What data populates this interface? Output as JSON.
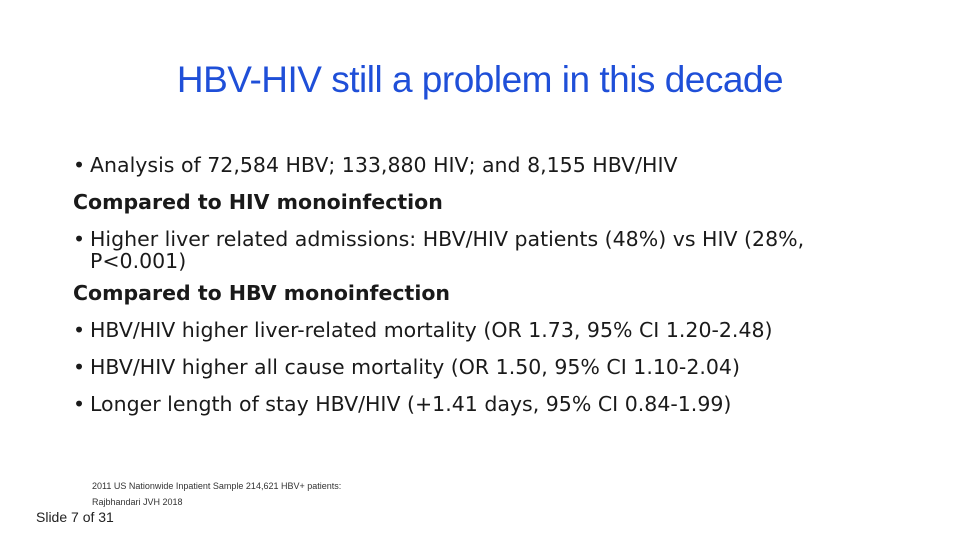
{
  "slide": {
    "title": "HBV-HIV still a problem in this decade",
    "bullet_char": "•",
    "lines": {
      "analysis": "Analysis of 72,584 HBV; 133,880 HIV; and 8,155 HBV/HIV",
      "section_hiv": "Compared to HIV monoinfection",
      "admissions_line1": "Higher liver related admissions: HBV/HIV patients (48%) vs HIV (28%,",
      "admissions_line2": "P<0.001)",
      "section_hbv": "Compared to HBV monoinfection",
      "liver_mortality": "HBV/HIV higher liver-related mortality (OR 1.73, 95% CI 1.20-2.48)",
      "all_cause_mortality": "HBV/HIV higher all cause mortality (OR 1.50, 95% CI 1.10-2.04)",
      "length_of_stay": "Longer length of stay HBV/HIV (+1.41 days, 95% CI 0.84-1.99)"
    },
    "reference": {
      "line1": "2011 US Nationwide Inpatient Sample 214,621 HBV+ patients:",
      "line2": "Rajbhandari JVH 2018"
    },
    "slide_number": "Slide 7 of 31",
    "colors": {
      "title": "#1f4fd8",
      "body_text": "#1a1a1a",
      "background": "#ffffff"
    }
  }
}
